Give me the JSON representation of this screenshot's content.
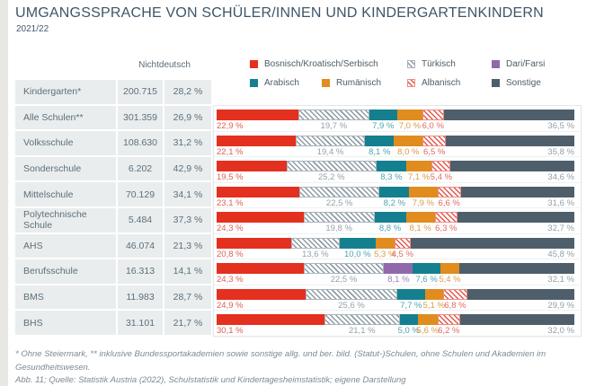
{
  "header": {
    "title": "UMGANGSSPRACHE VON SCHÜLER/INNEN UND KINDERGARTENKINDERN",
    "subtitle": "2021/22"
  },
  "table": {
    "column_header": "Nichtdeutsch",
    "rows": [
      {
        "label": "Kindergarten*",
        "count": "200.715",
        "pct": "28,2 %"
      },
      {
        "label": "Alle Schulen**",
        "count": "301.359",
        "pct": "26,9 %"
      },
      {
        "label": "Volksschule",
        "count": "108.630",
        "pct": "31,2 %"
      },
      {
        "label": "Sonderschule",
        "count": "6.202",
        "pct": "42,9 %"
      },
      {
        "label": "Mittelschule",
        "count": "70.129",
        "pct": "34,1 %"
      },
      {
        "label": "Polytechnische Schule",
        "count": "5.484",
        "pct": "37,3 %"
      },
      {
        "label": "AHS",
        "count": "46.074",
        "pct": "21,3 %"
      },
      {
        "label": "Berufsschule",
        "count": "16.313",
        "pct": "14,1 %"
      },
      {
        "label": "BMS",
        "count": "11.983",
        "pct": "28,7 %"
      },
      {
        "label": "BHS",
        "count": "31.101",
        "pct": "21,7 %"
      }
    ]
  },
  "series": {
    "bks": {
      "name": "Bosnisch/Kroatisch/Serbisch",
      "pattern": "solid",
      "fill": "#e4301f",
      "label_color": "#e25c51"
    },
    "tuerkisch": {
      "name": "Türkisch",
      "pattern": "hatch",
      "line": "#8e9ba3",
      "border": "#a9b4bb",
      "label_color": "#95a2aa"
    },
    "dari_farsi": {
      "name": "Dari/Farsi",
      "pattern": "solid",
      "fill": "#9069ad",
      "label_color": "#9d7fba"
    },
    "arabisch": {
      "name": "Arabisch",
      "pattern": "solid",
      "fill": "#14808f",
      "label_color": "#4da4b2"
    },
    "rumaenisch": {
      "name": "Rumänisch",
      "pattern": "solid",
      "fill": "#e08c1e",
      "label_color": "#db9a47"
    },
    "albanisch": {
      "name": "Albanisch",
      "pattern": "hatch",
      "line": "#e5564a",
      "border": "#e88e86",
      "label_color": "#e5695f"
    },
    "sonstige": {
      "name": "Sonstige",
      "pattern": "solid",
      "fill": "#4e5f6b",
      "label_color": "#93a0a8"
    }
  },
  "legend": {
    "row1": [
      "bks",
      "tuerkisch",
      "dari_farsi"
    ],
    "row2": [
      "arabisch",
      "rumaenisch",
      "albanisch",
      "sonstige"
    ]
  },
  "chart_data": {
    "type": "bar",
    "stacked": true,
    "orientation": "horizontal",
    "unit": "%",
    "xlim": [
      0,
      100
    ],
    "categories": [
      "Alle Schulen**",
      "Volksschule",
      "Sonderschule",
      "Mittelschule",
      "Polytechnische Schule",
      "AHS",
      "Berufsschule",
      "BMS",
      "BHS"
    ],
    "rows": [
      {
        "category": "Alle Schulen**",
        "segments": [
          {
            "key": "bks",
            "value": 22.9,
            "label": "22,9 %"
          },
          {
            "key": "tuerkisch",
            "value": 19.7,
            "label": "19,7 %"
          },
          {
            "key": "arabisch",
            "value": 7.9,
            "label": "7,9 %"
          },
          {
            "key": "rumaenisch",
            "value": 7.0,
            "label": "7,0 %"
          },
          {
            "key": "albanisch",
            "value": 6.0,
            "label": "6,0 %"
          },
          {
            "key": "sonstige",
            "value": 36.5,
            "label": "36,5 %"
          }
        ]
      },
      {
        "category": "Volksschule",
        "segments": [
          {
            "key": "bks",
            "value": 22.1,
            "label": "22,1 %"
          },
          {
            "key": "tuerkisch",
            "value": 19.4,
            "label": "19,4 %"
          },
          {
            "key": "arabisch",
            "value": 8.1,
            "label": "8,1 %"
          },
          {
            "key": "rumaenisch",
            "value": 8.0,
            "label": "8,0 %"
          },
          {
            "key": "albanisch",
            "value": 6.5,
            "label": "6,5 %"
          },
          {
            "key": "sonstige",
            "value": 35.8,
            "label": "35,8 %"
          }
        ]
      },
      {
        "category": "Sonderschule",
        "segments": [
          {
            "key": "bks",
            "value": 19.5,
            "label": "19,5 %"
          },
          {
            "key": "tuerkisch",
            "value": 25.2,
            "label": "25,2 %"
          },
          {
            "key": "arabisch",
            "value": 8.3,
            "label": "8,3 %"
          },
          {
            "key": "rumaenisch",
            "value": 7.1,
            "label": "7,1 %"
          },
          {
            "key": "albanisch",
            "value": 5.4,
            "label": "5,4 %"
          },
          {
            "key": "sonstige",
            "value": 34.6,
            "label": "34,6 %"
          }
        ]
      },
      {
        "category": "Mittelschule",
        "segments": [
          {
            "key": "bks",
            "value": 23.1,
            "label": "23,1 %"
          },
          {
            "key": "tuerkisch",
            "value": 22.5,
            "label": "22,5 %"
          },
          {
            "key": "arabisch",
            "value": 8.2,
            "label": "8,2 %"
          },
          {
            "key": "rumaenisch",
            "value": 7.9,
            "label": "7,9 %"
          },
          {
            "key": "albanisch",
            "value": 6.6,
            "label": "6,6 %"
          },
          {
            "key": "sonstige",
            "value": 31.6,
            "label": "31,6 %"
          }
        ]
      },
      {
        "category": "Polytechnische Schule",
        "segments": [
          {
            "key": "bks",
            "value": 24.3,
            "label": "24,3 %"
          },
          {
            "key": "tuerkisch",
            "value": 19.8,
            "label": "19,8 %"
          },
          {
            "key": "arabisch",
            "value": 8.8,
            "label": "8,8 %"
          },
          {
            "key": "rumaenisch",
            "value": 8.1,
            "label": "8,1 %"
          },
          {
            "key": "albanisch",
            "value": 6.3,
            "label": "6,3 %"
          },
          {
            "key": "sonstige",
            "value": 32.7,
            "label": "32,7 %"
          }
        ]
      },
      {
        "category": "AHS",
        "segments": [
          {
            "key": "bks",
            "value": 20.8,
            "label": "20,8 %"
          },
          {
            "key": "tuerkisch",
            "value": 13.6,
            "label": "13,6 %"
          },
          {
            "key": "arabisch",
            "value": 10.0,
            "label": "10,0 %"
          },
          {
            "key": "rumaenisch",
            "value": 5.3,
            "label": "5,3 %"
          },
          {
            "key": "albanisch",
            "value": 4.5,
            "label": "4,5 %"
          },
          {
            "key": "sonstige",
            "value": 45.8,
            "label": "45,8 %"
          }
        ]
      },
      {
        "category": "Berufsschule",
        "segments": [
          {
            "key": "bks",
            "value": 24.3,
            "label": "24,3 %"
          },
          {
            "key": "tuerkisch",
            "value": 22.5,
            "label": "22,5 %"
          },
          {
            "key": "dari_farsi",
            "value": 8.1,
            "label": "8,1 %"
          },
          {
            "key": "arabisch",
            "value": 7.6,
            "label": "7,6 %"
          },
          {
            "key": "rumaenisch",
            "value": 5.4,
            "label": "5,4 %"
          },
          {
            "key": "sonstige",
            "value": 32.1,
            "label": "32,1 %"
          }
        ]
      },
      {
        "category": "BMS",
        "segments": [
          {
            "key": "bks",
            "value": 24.9,
            "label": "24,9 %"
          },
          {
            "key": "tuerkisch",
            "value": 25.6,
            "label": "25,6 %"
          },
          {
            "key": "arabisch",
            "value": 7.7,
            "label": "7,7 %"
          },
          {
            "key": "rumaenisch",
            "value": 5.1,
            "label": "5,1 %"
          },
          {
            "key": "albanisch",
            "value": 6.8,
            "label": "6,8 %"
          },
          {
            "key": "sonstige",
            "value": 29.9,
            "label": "29,9 %"
          }
        ]
      },
      {
        "category": "BHS",
        "segments": [
          {
            "key": "bks",
            "value": 30.1,
            "label": "30,1 %"
          },
          {
            "key": "tuerkisch",
            "value": 21.1,
            "label": "21,1 %"
          },
          {
            "key": "arabisch",
            "value": 5.0,
            "label": "5,0 %"
          },
          {
            "key": "rumaenisch",
            "value": 5.6,
            "label": "5,6 %"
          },
          {
            "key": "albanisch",
            "value": 6.2,
            "label": "6,2 %"
          },
          {
            "key": "sonstige",
            "value": 32.0,
            "label": "32,0 %"
          }
        ]
      }
    ]
  },
  "footnotes": {
    "line1": "* Ohne Steiermark, ** inklusive Bundessportakademien sowie sonstige allg. und ber. bild. (Statut-)Schulen, ohne Schulen und Akademien im Gesundheitswesen.",
    "line2": "Abb. 11; Quelle: Statistik Austria (2022), Schulstatistik und Kindertagesheimstatistik; eigene Darstellung"
  }
}
